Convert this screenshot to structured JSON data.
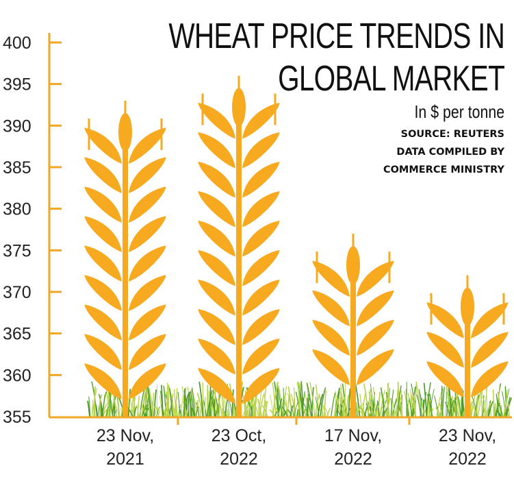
{
  "chart_data": {
    "type": "bar",
    "title_lines": [
      "WHEAT PRICE TRENDS IN",
      "GLOBAL MARKET"
    ],
    "subtitle": "In $ per tonne",
    "source_lines": [
      "SOURCE: REUTERS",
      "DATA COMPILED BY",
      "COMMERCE MINISTRY"
    ],
    "categories": [
      [
        "23 Nov,",
        "2021"
      ],
      [
        "23 Oct,",
        "2022"
      ],
      [
        "17 Nov,",
        "2022"
      ],
      [
        "23 Nov,",
        "2022"
      ]
    ],
    "values": [
      393,
      396,
      377,
      372
    ],
    "ylim": [
      355,
      400
    ],
    "yticks": [
      355,
      360,
      365,
      370,
      375,
      380,
      385,
      390,
      395,
      400
    ],
    "colors": {
      "axis": "#f2a622",
      "wheat": "#f7a91f",
      "grass_light": "#b9d34a",
      "grass_dark": "#4d9a2a"
    },
    "bar_style": "wheat-stalk-icon"
  }
}
